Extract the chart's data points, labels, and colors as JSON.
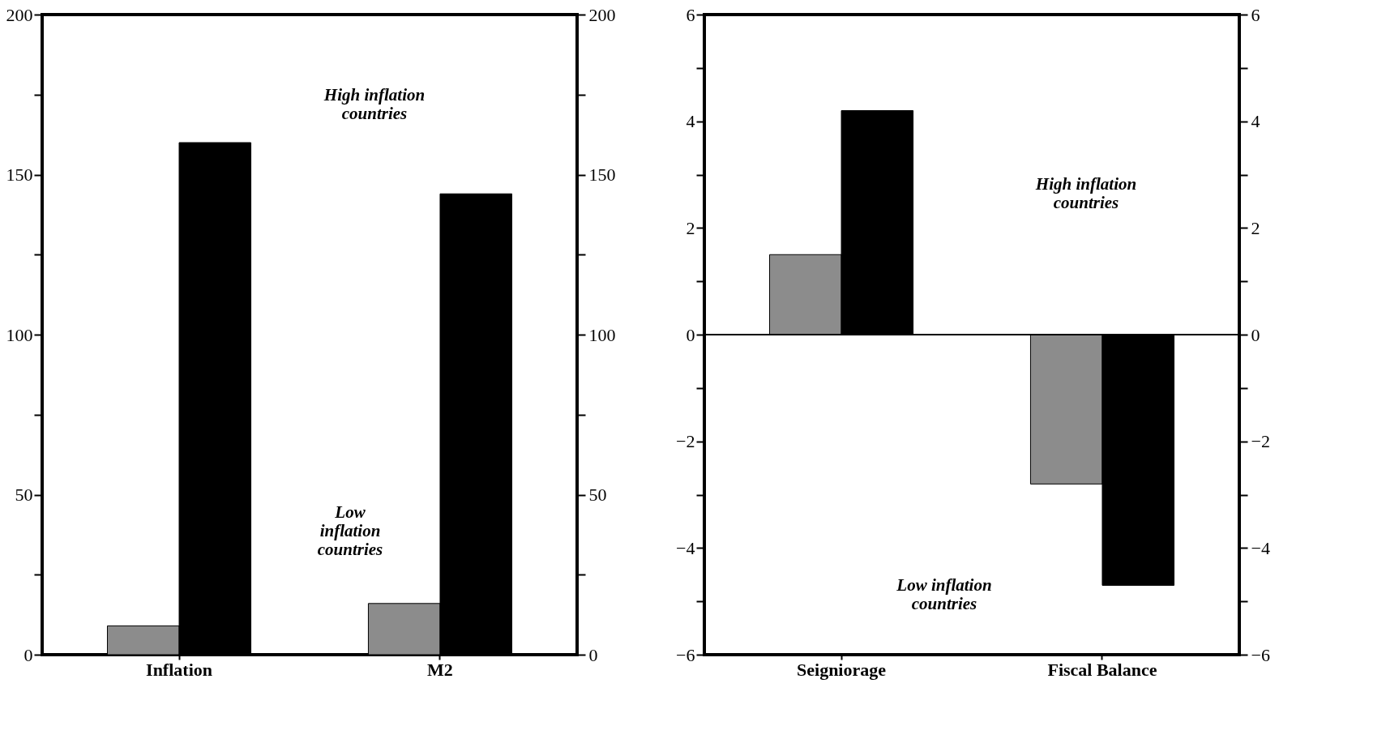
{
  "chart_data": [
    {
      "type": "bar",
      "categories": [
        "Inflation",
        "M2"
      ],
      "series": [
        {
          "color": "#8c8c8c",
          "values": [
            9,
            16
          ]
        },
        {
          "color": "#000000",
          "values": [
            160,
            144
          ]
        }
      ],
      "ylim": [
        0,
        200
      ],
      "yticks": [
        0,
        {
          "value": 25,
          "label": null
        },
        50,
        {
          "value": 75,
          "label": null
        },
        100,
        {
          "value": 125,
          "label": null
        },
        150,
        {
          "value": 175,
          "label": null
        },
        200
      ],
      "y2lim": [
        0,
        200
      ],
      "y2ticks": [
        0,
        {
          "value": 25,
          "label": null
        },
        50,
        {
          "value": 75,
          "label": null
        },
        100,
        {
          "value": 125,
          "label": null
        },
        150,
        {
          "value": 175,
          "label": null
        },
        200
      ],
      "annotations": [
        "High inflation\ncountries",
        "Low\ninflation\ncountries"
      ],
      "grid": false,
      "legend": false
    },
    {
      "type": "bar",
      "categories": [
        "Seigniorage",
        "Fiscal Balance"
      ],
      "series": [
        {
          "color": "#8c8c8c",
          "values": [
            1.5,
            -2.8
          ]
        },
        {
          "color": "#000000",
          "values": [
            4.2,
            -4.7
          ]
        }
      ],
      "ylim": [
        -6,
        6
      ],
      "yticks": [
        -6,
        {
          "value": -5,
          "label": null
        },
        -4,
        {
          "value": -3,
          "label": null
        },
        -2,
        {
          "value": -1,
          "label": null
        },
        0,
        {
          "value": 1,
          "label": null
        },
        2,
        {
          "value": 3,
          "label": null
        },
        4,
        {
          "value": 5,
          "label": null
        },
        6
      ],
      "y2lim": [
        -6,
        6
      ],
      "y2ticks": [
        -6,
        {
          "value": -5,
          "label": null
        },
        -4,
        {
          "value": -3,
          "label": null
        },
        -2,
        {
          "value": -1,
          "label": null
        },
        0,
        {
          "value": 1,
          "label": null
        },
        2,
        {
          "value": 3,
          "label": null
        },
        4,
        {
          "value": 5,
          "label": null
        },
        6
      ],
      "ref_lines": [
        {
          "axis": "y",
          "value": 0,
          "color": "#000000"
        }
      ],
      "annotations": [
        "High inflation\ncountries",
        "Low inflation\ncountries"
      ],
      "grid": false,
      "legend": false
    }
  ]
}
